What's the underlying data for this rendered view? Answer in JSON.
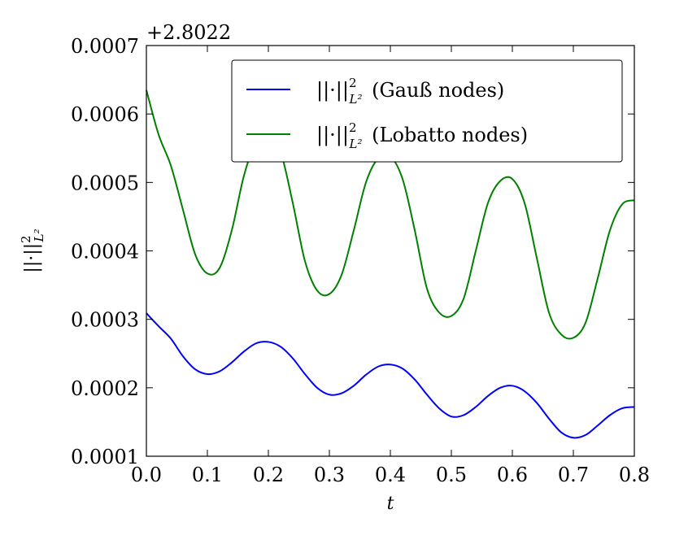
{
  "chart_data": {
    "type": "line",
    "offset_label": "+2.8022",
    "xlabel": "t",
    "ylabel": "||·||²_{L²}",
    "ylabel_parts": {
      "base": "||·||",
      "sup": "2",
      "sub": "L²"
    },
    "xlim": [
      0.0,
      0.8
    ],
    "ylim": [
      0.0001,
      0.0007
    ],
    "x_ticks": [
      "0.0",
      "0.1",
      "0.2",
      "0.3",
      "0.4",
      "0.5",
      "0.6",
      "0.7",
      "0.8"
    ],
    "y_ticks": [
      "0.0001",
      "0.0002",
      "0.0003",
      "0.0004",
      "0.0005",
      "0.0006",
      "0.0007"
    ],
    "grid": false,
    "legend_position": "top-right",
    "series": [
      {
        "name": "||·||²_{L²} (Gauß nodes)",
        "legend_parts": {
          "base": "||·||",
          "sup": "2",
          "sub": "L²",
          "suffix": " (Gauß nodes)"
        },
        "color": "#0000ff",
        "x": [
          0.0,
          0.02,
          0.04,
          0.06,
          0.08,
          0.1,
          0.12,
          0.14,
          0.16,
          0.18,
          0.2,
          0.22,
          0.24,
          0.26,
          0.28,
          0.3,
          0.32,
          0.34,
          0.36,
          0.38,
          0.4,
          0.42,
          0.44,
          0.46,
          0.48,
          0.5,
          0.52,
          0.54,
          0.56,
          0.58,
          0.6,
          0.62,
          0.64,
          0.66,
          0.68,
          0.7,
          0.72,
          0.74,
          0.76,
          0.78,
          0.8
        ],
        "y": [
          0.000309,
          0.00029,
          0.000272,
          0.000246,
          0.000227,
          0.00022,
          0.000224,
          0.000237,
          0.000253,
          0.000265,
          0.000267,
          0.00026,
          0.000243,
          0.00022,
          0.0002,
          0.00019,
          0.000192,
          0.000203,
          0.000219,
          0.000231,
          0.000234,
          0.000228,
          0.000212,
          0.00019,
          0.00017,
          0.000158,
          0.00016,
          0.000172,
          0.000188,
          0.0002,
          0.000203,
          0.000195,
          0.000178,
          0.000155,
          0.000135,
          0.000127,
          0.000131,
          0.000145,
          0.00016,
          0.00017,
          0.000172
        ]
      },
      {
        "name": "||·||²_{L²} (Lobatto nodes)",
        "legend_parts": {
          "base": "||·||",
          "sup": "2",
          "sub": "L²",
          "suffix": " (Lobatto nodes)"
        },
        "color": "#008000",
        "x": [
          0.0,
          0.02,
          0.04,
          0.06,
          0.08,
          0.1,
          0.12,
          0.14,
          0.16,
          0.18,
          0.2,
          0.22,
          0.24,
          0.26,
          0.28,
          0.3,
          0.32,
          0.34,
          0.36,
          0.38,
          0.4,
          0.42,
          0.44,
          0.46,
          0.48,
          0.5,
          0.52,
          0.54,
          0.56,
          0.58,
          0.6,
          0.62,
          0.64,
          0.66,
          0.68,
          0.7,
          0.72,
          0.74,
          0.76,
          0.78,
          0.8
        ],
        "y": [
          0.000635,
          0.00057,
          0.000525,
          0.00046,
          0.000395,
          0.000367,
          0.000375,
          0.00043,
          0.00051,
          0.00056,
          0.000572,
          0.000545,
          0.00047,
          0.000385,
          0.000342,
          0.000337,
          0.000365,
          0.00043,
          0.0005,
          0.000535,
          0.000538,
          0.000505,
          0.00043,
          0.000345,
          0.00031,
          0.000305,
          0.00033,
          0.0004,
          0.00047,
          0.000502,
          0.000505,
          0.00047,
          0.00039,
          0.00031,
          0.000278,
          0.000273,
          0.000295,
          0.00036,
          0.00043,
          0.000468,
          0.000474
        ]
      }
    ]
  }
}
